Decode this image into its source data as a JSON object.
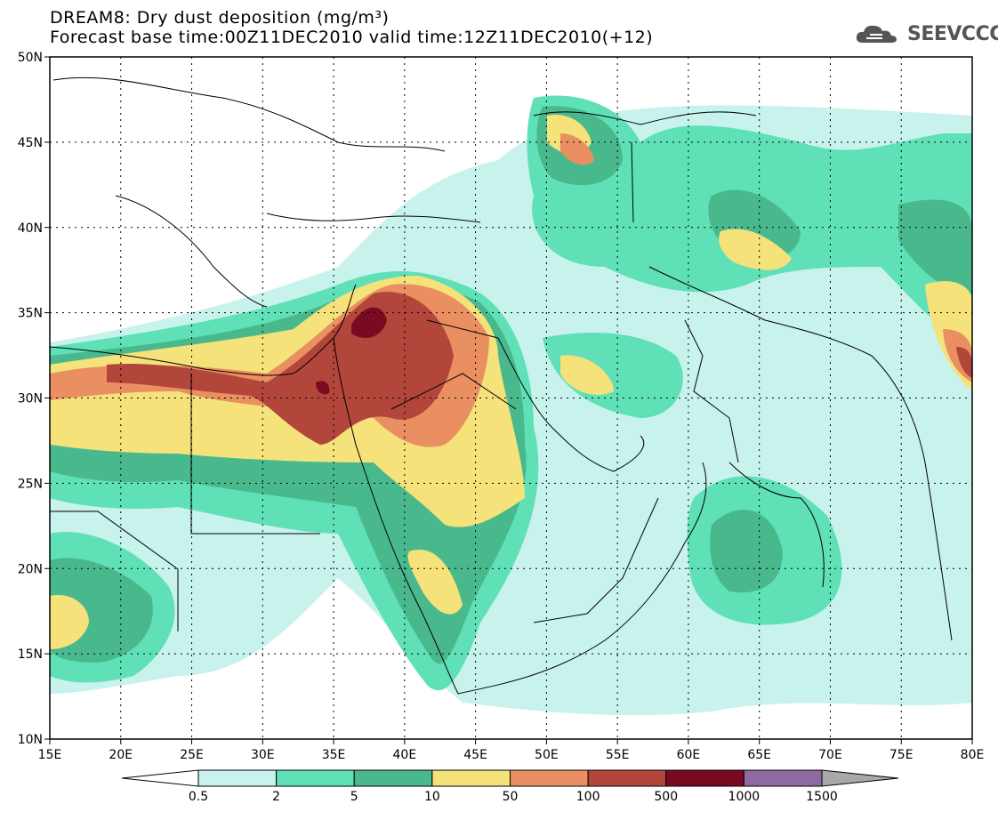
{
  "title": {
    "line1": "DREAM8: Dry dust deposition (mg/m³)",
    "line2": "Forecast base time:00Z11DEC2010 valid time:12Z11DEC2010(+12)"
  },
  "logo": {
    "text": "SEEVCCC",
    "icon": "cloud-icon"
  },
  "map": {
    "lat_labels": [
      "50N",
      "45N",
      "40N",
      "35N",
      "30N",
      "25N",
      "20N",
      "15N",
      "10N"
    ],
    "lon_labels": [
      "15E",
      "20E",
      "25E",
      "30E",
      "35E",
      "40E",
      "45E",
      "50E",
      "55E",
      "60E",
      "65E",
      "70E",
      "75E",
      "80E"
    ],
    "lat_range": [
      10,
      50
    ],
    "lon_range": [
      15,
      80
    ],
    "grid": "dotted"
  },
  "colorbar": {
    "labels": [
      "0.5",
      "2",
      "5",
      "10",
      "50",
      "100",
      "500",
      "1000",
      "1500"
    ],
    "colors": [
      "#ffffff",
      "#c8f2ec",
      "#5fe0b6",
      "#49b98d",
      "#f5e27a",
      "#e98f61",
      "#b2463b",
      "#7a0a22",
      "#8f6aa0",
      "#a8a8a8"
    ]
  },
  "legend": {
    "level_colors": {
      "l1": "#c8f2ec",
      "l2": "#5fe0b6",
      "l3": "#49b98d",
      "l4": "#f5e27a",
      "l5": "#e98f61",
      "l6": "#b2463b",
      "l7": "#7a0a22"
    }
  }
}
